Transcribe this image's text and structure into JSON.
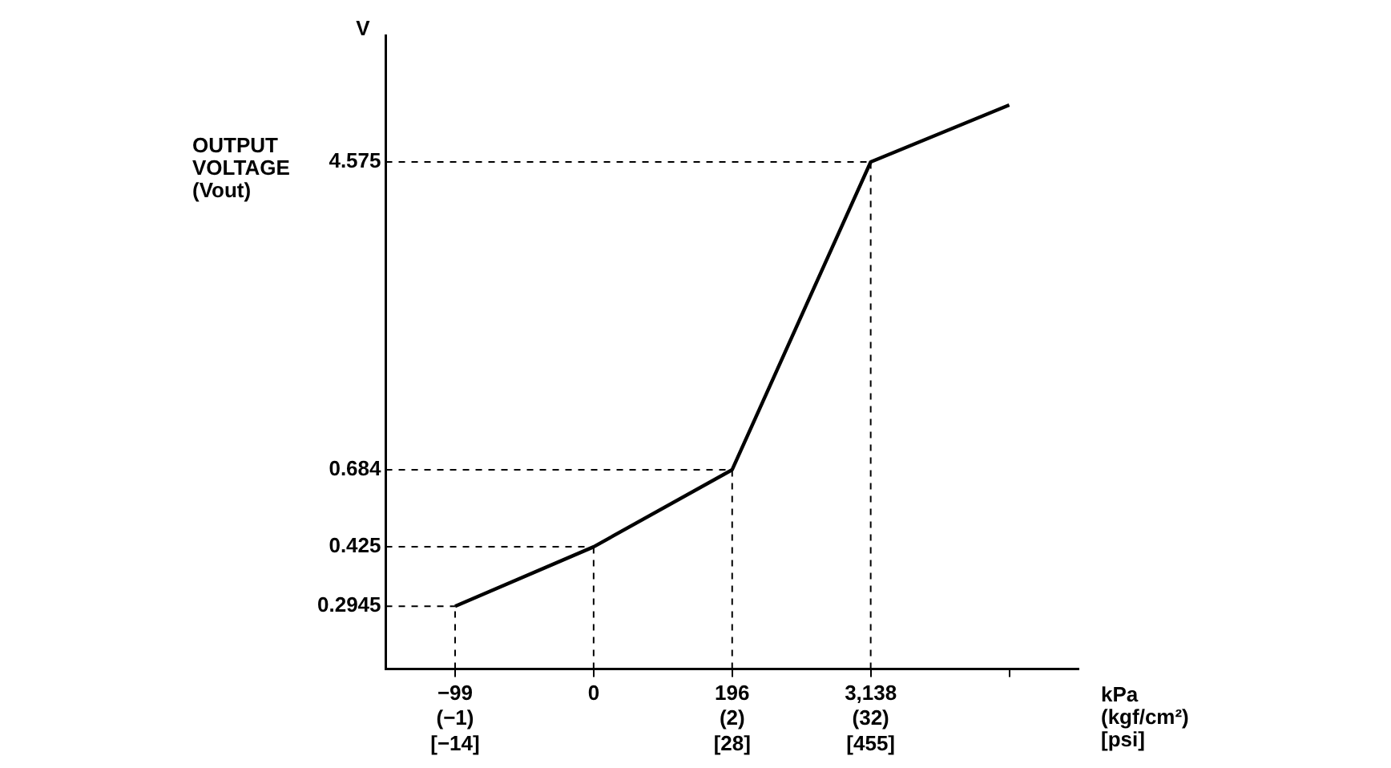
{
  "chart_data": {
    "type": "line",
    "xlabel": "kPa (kgf/cm²) [psi]",
    "ylabel": "OUTPUT VOLTAGE (Vout)",
    "annotations": [
      "V"
    ],
    "categories": [
      "−99\n(−1)\n[−14]",
      "0",
      "196\n(2)\n[28]",
      "3,138\n(32)\n[455]",
      null
    ],
    "series": [
      {
        "color": "#000000",
        "values": [
          0.2945,
          0.425,
          0.684,
          4.575,
          6.5
        ]
      }
    ],
    "log": "y",
    "ylim": [
      0.2,
      10
    ],
    "yticks": [
      0.2945,
      0.425,
      0.684,
      4.575
    ],
    "ref_lines": [
      {
        "axis": "x",
        "value": "−99\n(−1)\n[−14]",
        "line_style": "dashed",
        "color": "#000000"
      },
      {
        "axis": "x",
        "value": "0",
        "line_style": "dashed",
        "color": "#000000"
      },
      {
        "axis": "x",
        "value": "196\n(2)\n[28]",
        "line_style": "dashed",
        "color": "#000000"
      },
      {
        "axis": "x",
        "value": "3,138\n(32)\n[455]",
        "line_style": "dashed",
        "color": "#000000"
      },
      {
        "axis": "y",
        "value": 0.2945,
        "line_style": "dashed",
        "color": "#000000"
      },
      {
        "axis": "y",
        "value": 0.425,
        "line_style": "dashed",
        "color": "#000000"
      },
      {
        "axis": "y",
        "value": 0.684,
        "line_style": "dashed",
        "color": "#000000"
      },
      {
        "axis": "y",
        "value": 4.575,
        "line_style": "dashed",
        "color": "#000000"
      }
    ],
    "marker": "none",
    "line_style": "solid",
    "grid": false,
    "legend": false
  }
}
